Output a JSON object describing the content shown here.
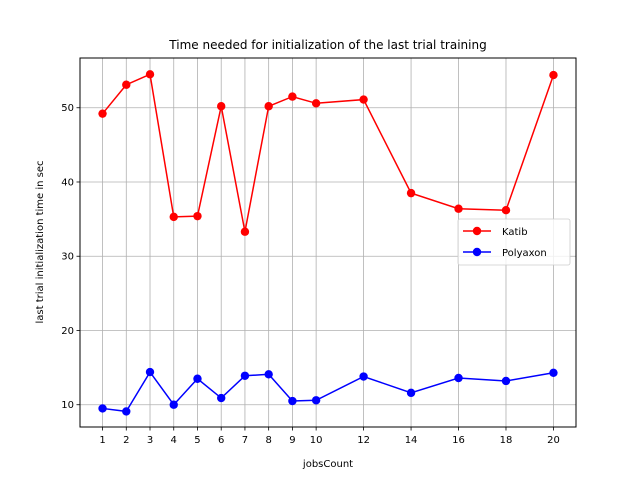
{
  "chart_data": {
    "type": "line",
    "title": "Time needed for initialization of the last trial training",
    "xlabel": "jobsCount",
    "ylabel": "last trial initialization time in sec",
    "x": [
      1,
      2,
      3,
      4,
      5,
      6,
      7,
      8,
      9,
      10,
      12,
      14,
      16,
      18,
      20
    ],
    "xticks": [
      1,
      2,
      3,
      4,
      5,
      6,
      7,
      8,
      9,
      10,
      12,
      14,
      16,
      18,
      20
    ],
    "yticks": [
      10,
      20,
      30,
      40,
      50
    ],
    "xlim": [
      0.05,
      20.95
    ],
    "ylim": [
      7.0,
      56.7
    ],
    "grid": true,
    "legend_position": "center-right",
    "series": [
      {
        "name": "Katib",
        "color": "#ff0000",
        "values": [
          49.2,
          53.1,
          54.5,
          35.3,
          35.4,
          50.2,
          33.3,
          50.2,
          51.5,
          50.6,
          51.1,
          38.5,
          36.4,
          36.2,
          54.4
        ]
      },
      {
        "name": "Polyaxon",
        "color": "#0000ff",
        "values": [
          9.5,
          9.1,
          14.4,
          10.0,
          13.5,
          10.9,
          13.9,
          14.1,
          10.5,
          10.6,
          13.8,
          11.6,
          13.6,
          13.2,
          14.3
        ]
      }
    ]
  }
}
